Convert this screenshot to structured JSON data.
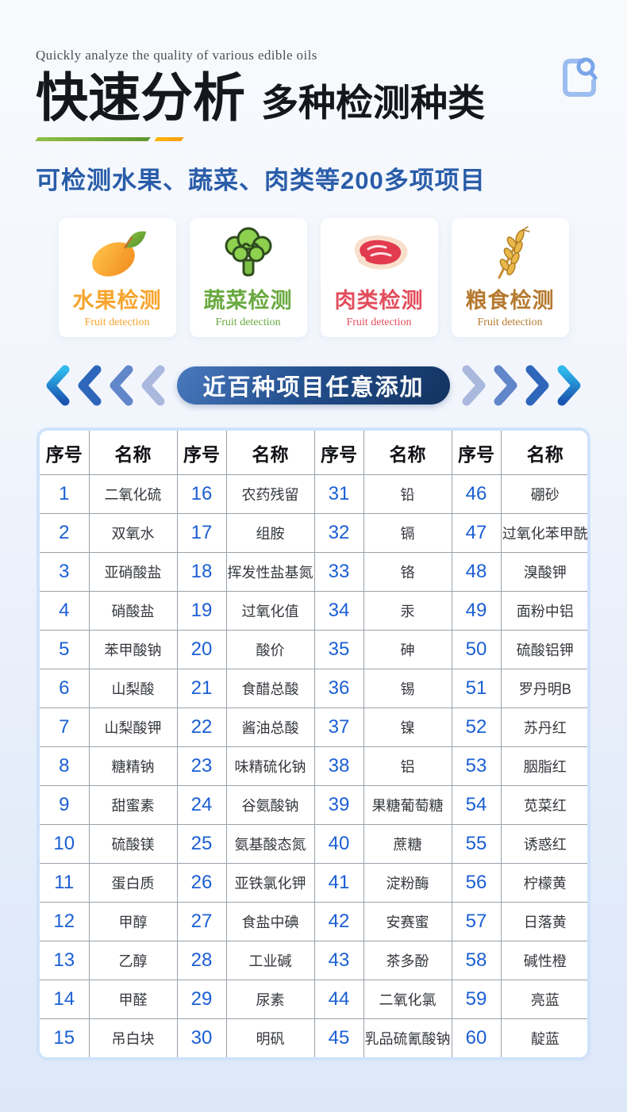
{
  "header": {
    "tagline": "Quickly analyze the quality of various edible oils",
    "title_main": "快速分析",
    "title_sub": "多种检测种类",
    "subheadline": "可检测水果、蔬菜、肉类等200多项项目"
  },
  "cards": [
    {
      "title": "水果检测",
      "subtitle": "Fruit detection",
      "color": "#f7a42d",
      "icon": "mango-icon"
    },
    {
      "title": "蔬菜检测",
      "subtitle": "Fruit detection",
      "color": "#69a93f",
      "icon": "broccoli-icon"
    },
    {
      "title": "肉类检测",
      "subtitle": "Fruit detection",
      "color": "#e34d5c",
      "icon": "meat-icon"
    },
    {
      "title": "粮食检测",
      "subtitle": "Fruit detection",
      "color": "#b5792f",
      "icon": "wheat-icon"
    }
  ],
  "ribbon": {
    "label": "近百种项目任意添加"
  },
  "table": {
    "header": [
      "序号",
      "名称",
      "序号",
      "名称",
      "序号",
      "名称",
      "序号",
      "名称"
    ],
    "rows": [
      [
        "1",
        "二氧化硫",
        "16",
        "农药残留",
        "31",
        "铅",
        "46",
        "硼砂"
      ],
      [
        "2",
        "双氧水",
        "17",
        "组胺",
        "32",
        "镉",
        "47",
        "过氧化苯甲酰"
      ],
      [
        "3",
        "亚硝酸盐",
        "18",
        "挥发性盐基氮",
        "33",
        "铬",
        "48",
        "溴酸钾"
      ],
      [
        "4",
        "硝酸盐",
        "19",
        "过氧化值",
        "34",
        "汞",
        "49",
        "面粉中铝"
      ],
      [
        "5",
        "苯甲酸钠",
        "20",
        "酸价",
        "35",
        "砷",
        "50",
        "硫酸铝钾"
      ],
      [
        "6",
        "山梨酸",
        "21",
        "食醋总酸",
        "36",
        "锡",
        "51",
        "罗丹明B"
      ],
      [
        "7",
        "山梨酸钾",
        "22",
        "酱油总酸",
        "37",
        "镍",
        "52",
        "苏丹红"
      ],
      [
        "8",
        "糖精钠",
        "23",
        "味精硫化钠",
        "38",
        "铝",
        "53",
        "胭脂红"
      ],
      [
        "9",
        "甜蜜素",
        "24",
        "谷氨酸钠",
        "39",
        "果糖葡萄糖",
        "54",
        "苋菜红"
      ],
      [
        "10",
        "硫酸镁",
        "25",
        "氨基酸态氮",
        "40",
        "蔗糖",
        "55",
        "诱惑红"
      ],
      [
        "11",
        "蛋白质",
        "26",
        "亚铁氯化钾",
        "41",
        "淀粉酶",
        "56",
        "柠檬黄"
      ],
      [
        "12",
        "甲醇",
        "27",
        "食盐中碘",
        "42",
        "安赛蜜",
        "57",
        "日落黄"
      ],
      [
        "13",
        "乙醇",
        "28",
        "工业碱",
        "43",
        "茶多酚",
        "58",
        "碱性橙"
      ],
      [
        "14",
        "甲醛",
        "29",
        "尿素",
        "44",
        "二氧化氯",
        "59",
        "亮蓝"
      ],
      [
        "15",
        "吊白块",
        "30",
        "明矾",
        "45",
        "乳品硫氰酸钠",
        "60",
        "靛蓝"
      ]
    ]
  },
  "colors": {
    "subheadline_blue": "#2a5da9",
    "table_number_blue": "#1b5fd3",
    "pill_dark_blue": "#24508f",
    "underline_green": "#5d9630",
    "underline_orange": "#f79d14"
  }
}
